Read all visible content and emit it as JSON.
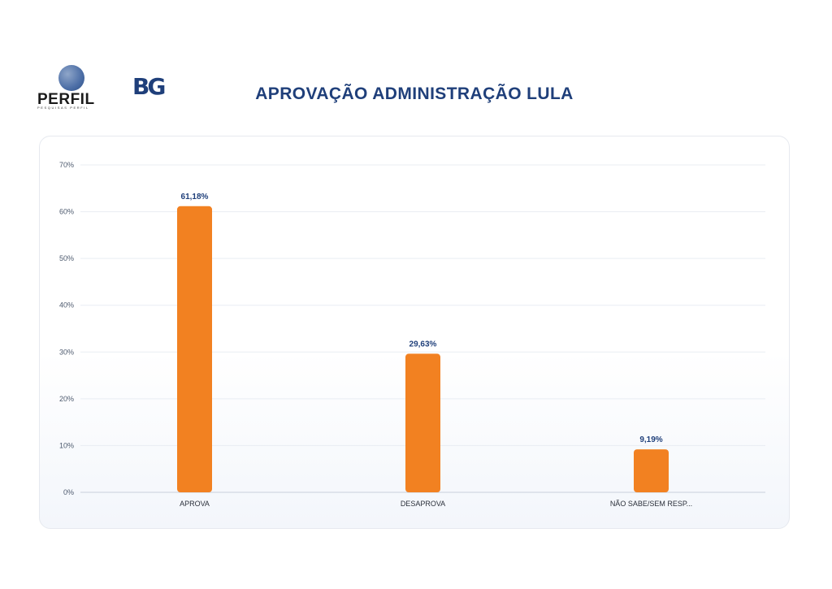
{
  "header": {
    "logo_perfil_text": "PERFIL",
    "logo_perfil_tagline": "PESQUISAS PERFIL",
    "logo_bg_text": "BG",
    "title": "APROVAÇÃO ADMINISTRAÇÃO LULA"
  },
  "colors": {
    "bar": "#f28121",
    "title": "#1f3f7a",
    "grid": "#e9edf3"
  },
  "chart_data": {
    "type": "bar",
    "title": "APROVAÇÃO ADMINISTRAÇÃO LULA",
    "categories": [
      "APROVA",
      "DESAPROVA",
      "NÃO SABE/SEM RESP..."
    ],
    "values": [
      61.18,
      29.63,
      9.19
    ],
    "value_labels": [
      "61,18%",
      "29,63%",
      "9,19%"
    ],
    "ylim": [
      0,
      70
    ],
    "yticks": [
      0,
      10,
      20,
      30,
      40,
      50,
      60,
      70
    ],
    "ytick_labels": [
      "0%",
      "10%",
      "20%",
      "30%",
      "40%",
      "50%",
      "60%",
      "70%"
    ],
    "xlabel": "",
    "ylabel": "",
    "grid": true,
    "legend": "none"
  }
}
